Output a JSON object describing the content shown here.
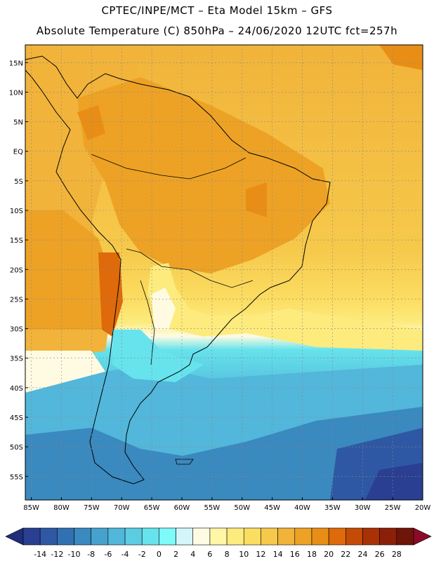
{
  "header": {
    "line1": "CPTEC/INPE/MCT –  Eta Model 15km – GFS",
    "line2": "Absolute Temperature (C) 850hPa – 24/06/2020 12UTC fct=257h"
  },
  "map": {
    "lon_range": [
      -86,
      -20
    ],
    "lat_range": [
      -59,
      18
    ],
    "lat_labels": [
      "15N",
      "10N",
      "5N",
      "EQ",
      "5S",
      "10S",
      "15S",
      "20S",
      "25S",
      "30S",
      "35S",
      "40S",
      "45S",
      "50S",
      "55S"
    ],
    "lat_values": [
      15,
      10,
      5,
      0,
      -5,
      -10,
      -15,
      -20,
      -25,
      -30,
      -35,
      -40,
      -45,
      -50,
      -55
    ],
    "lon_labels": [
      "85W",
      "80W",
      "75W",
      "70W",
      "65W",
      "60W",
      "55W",
      "50W",
      "45W",
      "40W",
      "35W",
      "30W",
      "25W",
      "20W"
    ],
    "lon_values": [
      -85,
      -80,
      -75,
      -70,
      -65,
      -60,
      -55,
      -50,
      -45,
      -40,
      -35,
      -30,
      -25,
      -20
    ]
  },
  "colorbar": {
    "unit": "C",
    "ticks": [
      "-14",
      "-12",
      "-10",
      "-8",
      "-6",
      "-4",
      "-2",
      "0",
      "2",
      "4",
      "6",
      "8",
      "10",
      "12",
      "14",
      "16",
      "18",
      "20",
      "22",
      "24",
      "26",
      "28"
    ],
    "colors": [
      "#2a3f92",
      "#2e58a4",
      "#3271b1",
      "#3a89bf",
      "#46a2cd",
      "#52b7da",
      "#5ccce3",
      "#66e3ec",
      "#7dfbfb",
      "#d4f6fb",
      "#fffbe3",
      "#fff6a6",
      "#fdeb7e",
      "#fbdd62",
      "#f6c94b",
      "#f1b33a",
      "#eda225",
      "#e88e16",
      "#de6a0b",
      "#c44a07",
      "#a83206",
      "#8c1f08",
      "#6e1408"
    ],
    "end_colors": {
      "low": "#1f2d7a",
      "high": "#8b0a2a"
    }
  }
}
